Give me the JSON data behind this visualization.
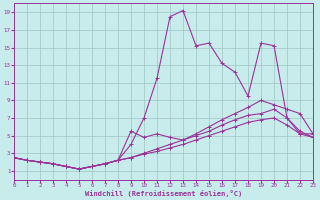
{
  "background_color": "#c8ecec",
  "grid_color": "#a0c4c4",
  "line_color": "#993399",
  "xlim": [
    0,
    23
  ],
  "ylim": [
    0,
    20
  ],
  "xticks": [
    0,
    1,
    2,
    3,
    4,
    5,
    6,
    7,
    8,
    9,
    10,
    11,
    12,
    13,
    14,
    15,
    16,
    17,
    18,
    19,
    20,
    21,
    22,
    23
  ],
  "yticks": [
    1,
    3,
    5,
    7,
    9,
    11,
    13,
    15,
    17,
    19
  ],
  "xlabel": "Windchill (Refroidissement éolien,°C)",
  "line1_x": [
    0,
    1,
    2,
    3,
    4,
    5,
    6,
    7,
    8,
    9,
    10,
    11,
    12,
    13,
    14,
    15,
    16,
    17,
    18,
    19,
    20,
    21,
    22,
    23
  ],
  "line1_y": [
    2.5,
    2.2,
    2.0,
    1.8,
    1.5,
    1.2,
    1.5,
    1.8,
    2.2,
    4.0,
    7.0,
    11.5,
    18.5,
    19.2,
    15.2,
    15.5,
    13.2,
    12.2,
    9.5,
    15.5,
    15.2,
    7.0,
    5.2,
    5.2
  ],
  "line2_x": [
    0,
    1,
    2,
    3,
    4,
    5,
    6,
    7,
    8,
    9,
    10,
    11,
    12,
    13,
    14,
    15,
    16,
    17,
    18,
    19,
    20,
    21,
    22,
    23
  ],
  "line2_y": [
    2.5,
    2.2,
    2.0,
    1.8,
    1.5,
    1.2,
    1.5,
    1.8,
    2.2,
    5.5,
    4.8,
    5.2,
    4.8,
    4.5,
    5.2,
    6.0,
    6.8,
    7.5,
    8.2,
    9.0,
    8.5,
    8.0,
    7.5,
    5.2
  ],
  "line3_x": [
    0,
    1,
    2,
    3,
    4,
    5,
    6,
    7,
    8,
    9,
    10,
    11,
    12,
    13,
    14,
    15,
    16,
    17,
    18,
    19,
    20,
    21,
    22,
    23
  ],
  "line3_y": [
    2.5,
    2.2,
    2.0,
    1.8,
    1.5,
    1.2,
    1.5,
    1.8,
    2.2,
    2.5,
    3.0,
    3.5,
    4.0,
    4.5,
    5.0,
    5.5,
    6.2,
    6.8,
    7.3,
    7.5,
    8.0,
    7.0,
    5.5,
    4.8
  ],
  "line4_x": [
    0,
    1,
    2,
    3,
    4,
    5,
    6,
    7,
    8,
    9,
    10,
    11,
    12,
    13,
    14,
    15,
    16,
    17,
    18,
    19,
    20,
    21,
    22,
    23
  ],
  "line4_y": [
    2.5,
    2.2,
    2.0,
    1.8,
    1.5,
    1.2,
    1.5,
    1.8,
    2.2,
    2.5,
    2.9,
    3.2,
    3.6,
    4.0,
    4.5,
    5.0,
    5.5,
    6.0,
    6.5,
    6.8,
    7.0,
    6.2,
    5.2,
    4.8
  ]
}
